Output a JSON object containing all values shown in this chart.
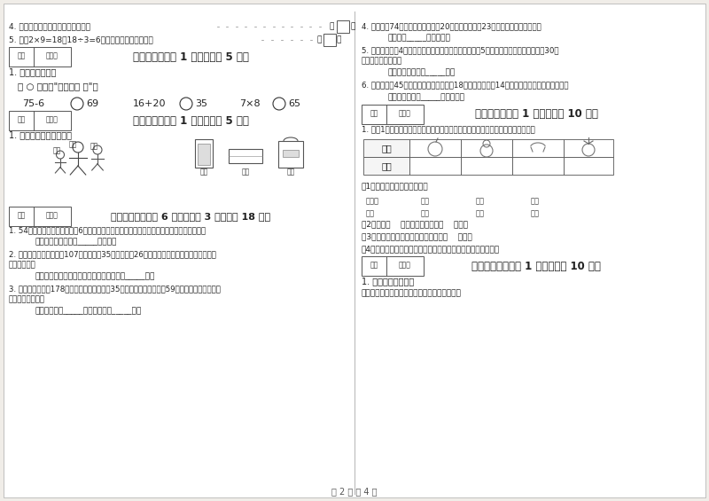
{
  "page_bg": "#f0ede8",
  "paper_bg": "#ffffff",
  "border_color": "#aaaaaa",
  "text_color": "#222222",
  "light_gray": "#888888",
  "page_footer": "第 2 页 共 4 页",
  "section6_header": "六、比一比（共 1 大题，共计 5 分）",
  "section7_header": "七、连一连（共 1 大题，共计 5 分）",
  "section8_header": "八、解决问题（共 6 小题，每题 3 分，共计 18 分）",
  "section10_header": "十、综合题（共 1 大题，共计 10 分）",
  "section11_header": "十一、附加题（共 1 大题，共计 10 分）"
}
